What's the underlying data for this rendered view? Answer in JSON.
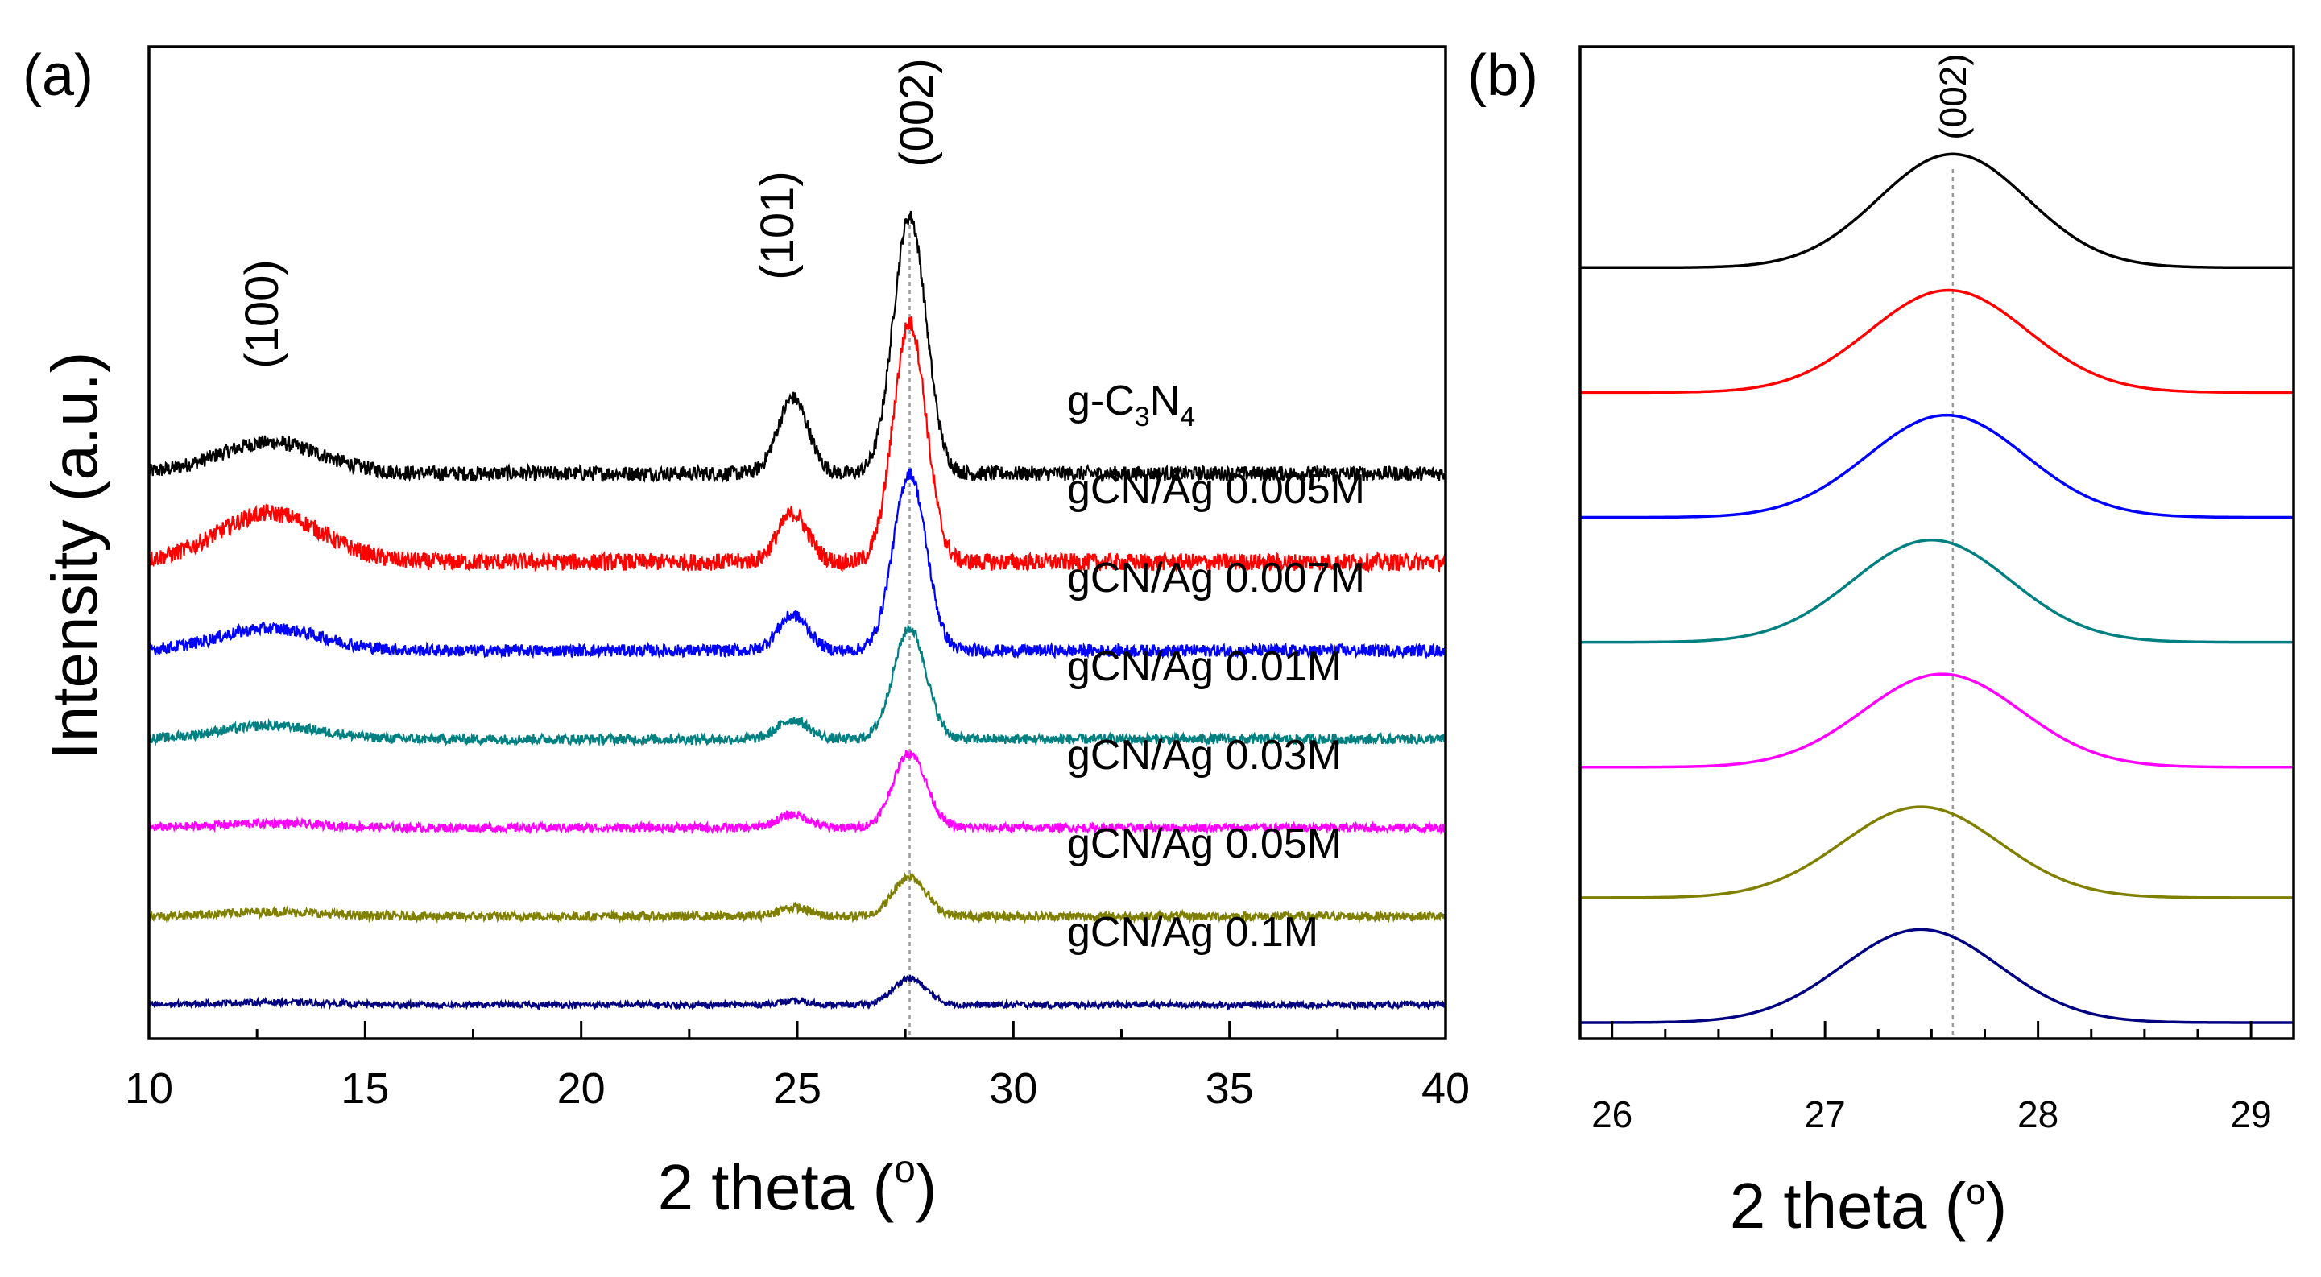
{
  "chart_data": [
    {
      "panel": "(a)",
      "type": "line",
      "xlabel": "2 theta (",
      "xlabel_sup": "o",
      "xlabel_close": ")",
      "ylabel": "Intensity (a.u.)",
      "xlim": [
        10,
        40
      ],
      "xticks": [
        10,
        15,
        20,
        25,
        30,
        35,
        40
      ],
      "reference_line_x": 27.6,
      "peaks": [
        {
          "label": "(100)",
          "x": 13.0
        },
        {
          "label": "(101)",
          "x": 24.9
        },
        {
          "label": "(002)",
          "x": 27.6
        }
      ],
      "series": [
        {
          "name": "g-C3N4",
          "label_parts": [
            "g-C",
            "3",
            "N",
            "4"
          ],
          "color": "#000000",
          "offset": 6,
          "peak_100": 0.35,
          "peak_101": 0.85,
          "peak_002": 2.9,
          "noise": 0.12
        },
        {
          "name": "gCN/Ag 0.005M",
          "color": "#ff0000",
          "offset": 5,
          "peak_100": 0.55,
          "peak_101": 0.55,
          "peak_002": 2.7,
          "noise": 0.14
        },
        {
          "name": "gCN/Ag 0.007M",
          "color": "#0000ff",
          "offset": 4,
          "peak_100": 0.25,
          "peak_101": 0.4,
          "peak_002": 2.0,
          "noise": 0.1
        },
        {
          "name": "gCN/Ag 0.01M",
          "color": "#008080",
          "offset": 3,
          "peak_100": 0.15,
          "peak_101": 0.22,
          "peak_002": 1.25,
          "noise": 0.08
        },
        {
          "name": "gCN/Ag 0.03M",
          "color": "#ff00ff",
          "offset": 2,
          "peak_100": 0.05,
          "peak_101": 0.15,
          "peak_002": 0.85,
          "noise": 0.07
        },
        {
          "name": "gCN/Ag 0.05M",
          "color": "#808000",
          "offset": 1,
          "peak_100": 0.05,
          "peak_101": 0.1,
          "peak_002": 0.45,
          "noise": 0.07
        },
        {
          "name": "gCN/Ag 0.1M",
          "color": "#000080",
          "offset": 0,
          "peak_100": 0.03,
          "peak_101": 0.04,
          "peak_002": 0.3,
          "noise": 0.05
        }
      ]
    },
    {
      "panel": "(b)",
      "type": "line",
      "xlabel": "2 theta (",
      "xlabel_sup": "o",
      "xlabel_close": ")",
      "xlim": [
        25.85,
        29.2
      ],
      "xticks": [
        26,
        27,
        28,
        29
      ],
      "reference_line_x": 27.6,
      "peak_label": "(002)",
      "series": [
        {
          "name": "g-C3N4",
          "color": "#000000",
          "center": 27.6,
          "sigma": 0.35,
          "height": 1.0,
          "baseline": 7.5
        },
        {
          "name": "gCN/Ag 0.005M",
          "color": "#ff0000",
          "center": 27.58,
          "sigma": 0.37,
          "height": 0.9,
          "baseline": 6.4
        },
        {
          "name": "gCN/Ag 0.007M",
          "color": "#0000ff",
          "center": 27.57,
          "sigma": 0.37,
          "height": 0.9,
          "baseline": 5.3
        },
        {
          "name": "gCN/Ag 0.01M",
          "color": "#008080",
          "center": 27.5,
          "sigma": 0.37,
          "height": 0.9,
          "baseline": 4.2
        },
        {
          "name": "gCN/Ag 0.03M",
          "color": "#ff00ff",
          "center": 27.55,
          "sigma": 0.37,
          "height": 0.82,
          "baseline": 3.1
        },
        {
          "name": "gCN/Ag 0.05M",
          "color": "#808000",
          "center": 27.45,
          "sigma": 0.37,
          "height": 0.8,
          "baseline": 1.95
        },
        {
          "name": "gCN/Ag 0.1M",
          "color": "#000080",
          "center": 27.45,
          "sigma": 0.37,
          "height": 0.82,
          "baseline": 0.85
        }
      ]
    }
  ]
}
